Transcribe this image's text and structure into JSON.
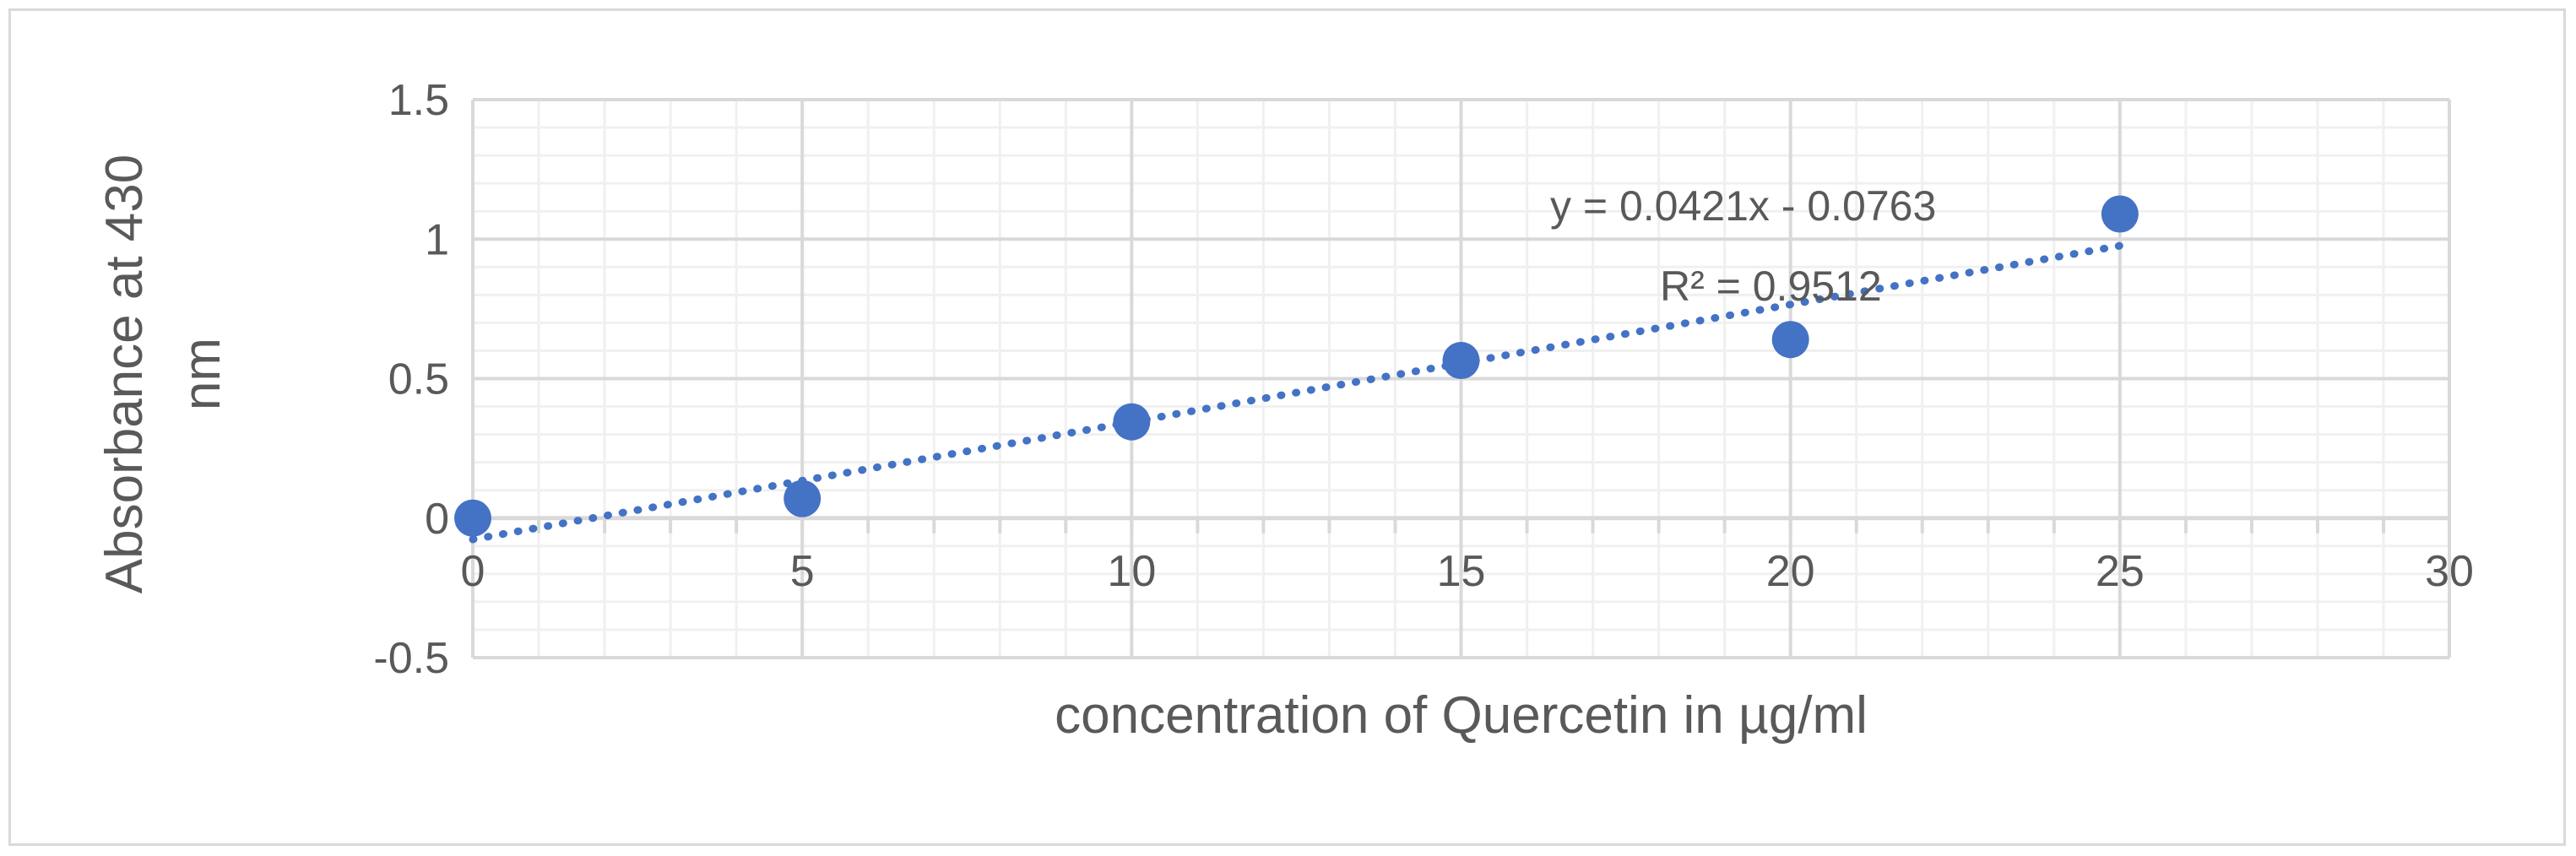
{
  "chart_data": {
    "type": "scatter",
    "title": "",
    "xlabel": "concentration of Quercetin in  µg/ml",
    "ylabel_lines": [
      "Absorbance at 430",
      "nm"
    ],
    "xlim": [
      0,
      30
    ],
    "ylim": [
      -0.5,
      1.5
    ],
    "x_ticks": [
      0,
      5,
      10,
      15,
      20,
      25,
      30
    ],
    "x_tick_labels": [
      "0",
      "5",
      "10",
      "15",
      "20",
      "25",
      "30"
    ],
    "y_ticks": [
      -0.5,
      0,
      0.5,
      1,
      1.5
    ],
    "y_tick_labels": [
      "-0.5",
      "0",
      "0.5",
      "1",
      "1.5"
    ],
    "x_minor_step": 1,
    "y_minor_step": 0.1,
    "grid": true,
    "legend": "none",
    "series": [
      {
        "x": [
          0,
          5,
          10,
          15,
          20,
          25
        ],
        "y": [
          0,
          0.07,
          0.345,
          0.565,
          0.64,
          1.09
        ],
        "color": "#4472c4"
      }
    ],
    "trendline": {
      "type": "linear",
      "slope": 0.0421,
      "intercept": -0.0763,
      "x_range": [
        0,
        25
      ],
      "style": "dotted",
      "color": "#4472c4",
      "equation_label": "y = 0.0421x - 0.0763",
      "r2_label": "R² = 0.9512"
    },
    "colors": {
      "major_grid": "#d9d9d9",
      "minor_grid": "#f0f0f0",
      "axis_line": "#d9d9d9",
      "text": "#595959"
    }
  }
}
